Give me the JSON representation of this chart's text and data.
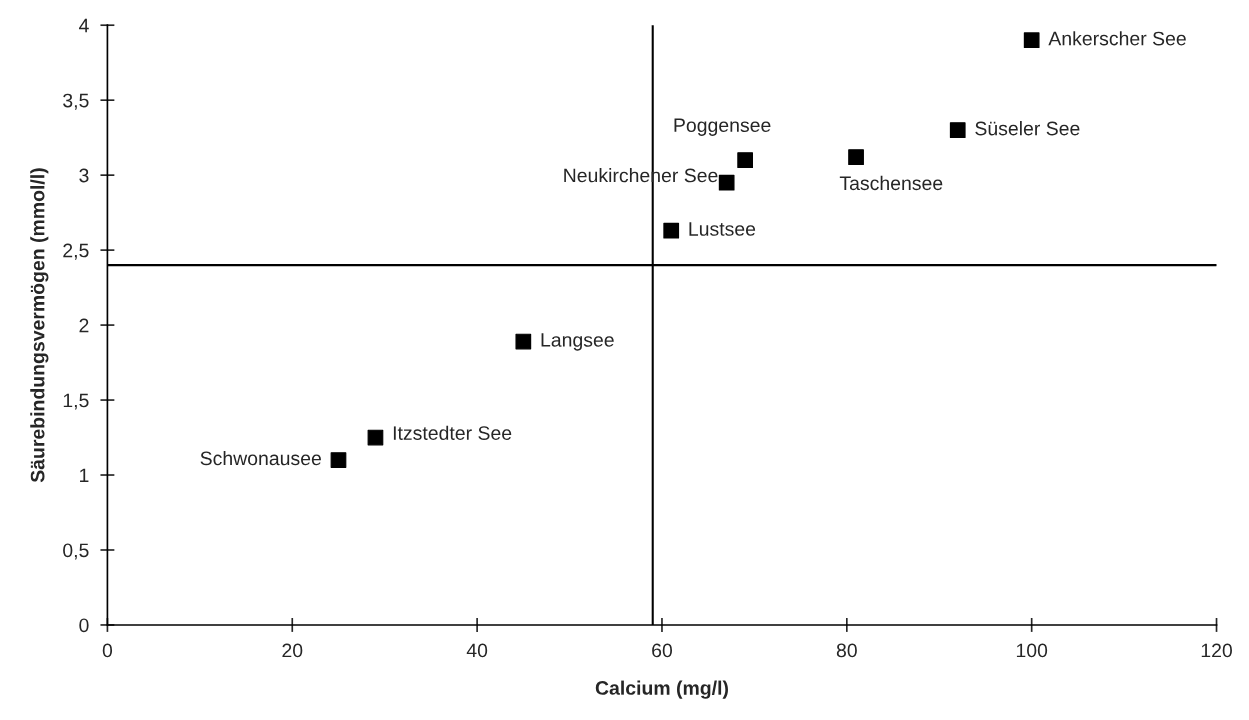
{
  "chart_data": {
    "type": "scatter",
    "xlabel": "Calcium (mg/l)",
    "ylabel": "Säurebindungsvermögen (mmol/l)",
    "x": [
      100,
      92,
      81,
      69,
      67,
      61,
      45,
      29,
      25
    ],
    "values": [
      3.9,
      3.3,
      3.12,
      3.1,
      2.95,
      2.63,
      1.89,
      1.25,
      1.1
    ],
    "color": "#000000",
    "marker": "square",
    "xlim": [
      0,
      120
    ],
    "xticks": [
      0,
      20,
      40,
      60,
      80,
      100,
      120
    ],
    "ylim": [
      0,
      4
    ],
    "yticks": [
      0,
      {
        "value": 0.5,
        "label": "0,5"
      },
      1,
      {
        "value": 1.5,
        "label": "1,5"
      },
      2,
      {
        "value": 2.5,
        "label": "2,5"
      },
      3,
      {
        "value": 3.5,
        "label": "3,5"
      },
      4
    ],
    "ref_lines": [
      {
        "axis": "x",
        "value": 59,
        "color": "#000000"
      },
      {
        "axis": "y",
        "value": 2.4,
        "color": "#000000"
      }
    ],
    "annotations": [
      {
        "text": "Ankerscher See",
        "x": 100,
        "y": 3.9
      },
      {
        "text": "Süseler See",
        "x": 92,
        "y": 3.3
      },
      {
        "text": "Taschensee",
        "x": 81,
        "y": 3.12
      },
      {
        "text": "Poggensee",
        "x": 69,
        "y": 3.1
      },
      {
        "text": "Neukirchener See",
        "x": 67,
        "y": 2.95
      },
      {
        "text": "Lustsee",
        "x": 61,
        "y": 2.63
      },
      {
        "text": "Langsee",
        "x": 45,
        "y": 1.89
      },
      {
        "text": "Itzstedter See",
        "x": 29,
        "y": 1.25
      },
      {
        "text": "Schwonausee",
        "x": 25,
        "y": 1.1
      }
    ],
    "grid": false,
    "legend": false
  }
}
